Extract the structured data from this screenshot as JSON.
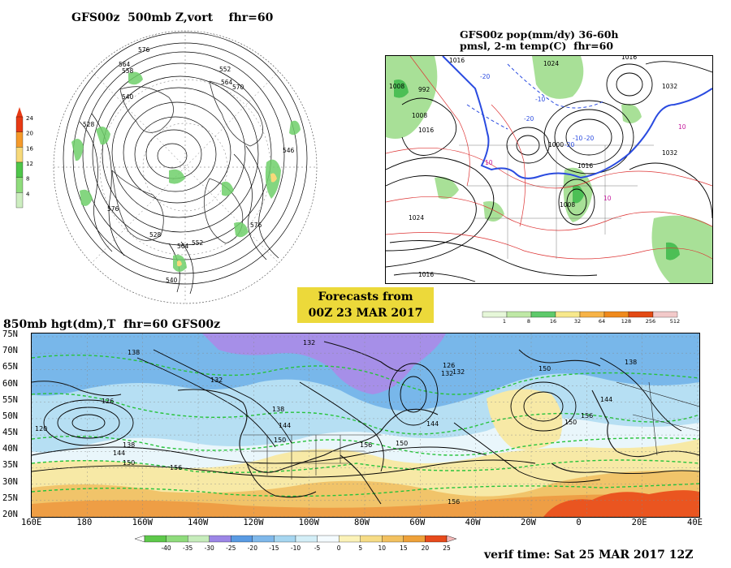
{
  "panel_500mb": {
    "title": "GFS00z  500mb Z,vort    fhr=60",
    "legend_ticks": [
      "24",
      "20",
      "16",
      "12",
      "8",
      "4"
    ],
    "legend_colors": [
      "#e83a14",
      "#f59a2a",
      "#f7d97a",
      "#4fc64a",
      "#8fdc7c",
      "#cdeec0"
    ],
    "height_labels": [
      "576",
      "564",
      "558",
      "540",
      "528",
      "552",
      "564",
      "570",
      "576",
      "546",
      "564",
      "552",
      "528",
      "540",
      "576"
    ]
  },
  "panel_pop": {
    "title_line1": "GFS00z pop(mm/dy) 36-60h",
    "title_line2": "pmsl, 2-m temp(C)  fhr=60",
    "pressure_labels": [
      "1016",
      "1008",
      "992",
      "1008",
      "1016",
      "1000",
      "1016",
      "1008",
      "1024",
      "1032",
      "1024",
      "1016",
      "1032",
      "1016"
    ],
    "temp_labels": [
      "-20",
      "-10",
      "-20",
      "10",
      "-10",
      "-20",
      "10",
      "10",
      "-20"
    ],
    "scale_values": [
      "1",
      "8",
      "16",
      "32",
      "64",
      "128",
      "256",
      "512"
    ],
    "scale_colors": [
      "#e6f7d9",
      "#bfe8a6",
      "#5ec96b",
      "#f7e88c",
      "#f7b347",
      "#ef8a1c",
      "#e34a14",
      "#f2c9c9"
    ]
  },
  "forecast_box": {
    "line1": "Forecasts from",
    "line2": "00Z 23 MAR 2017"
  },
  "panel_850mb": {
    "title": "850mb hgt(dm),T  fhr=60 GFS00z",
    "lat_labels": [
      "75N",
      "70N",
      "65N",
      "60N",
      "55N",
      "50N",
      "45N",
      "40N",
      "35N",
      "30N",
      "25N",
      "20N"
    ],
    "lon_labels": [
      "160E",
      "180",
      "160W",
      "140W",
      "120W",
      "100W",
      "80W",
      "60W",
      "40W",
      "20W",
      "0",
      "20E",
      "40E"
    ],
    "height_labels": [
      "138",
      "132",
      "126",
      "120",
      "138",
      "144",
      "150",
      "156",
      "132",
      "138",
      "144",
      "150",
      "156",
      "150",
      "132",
      "126",
      "132",
      "144",
      "150",
      "156",
      "156",
      "150",
      "144",
      "138"
    ],
    "temp_scale_values": [
      "-40",
      "-35",
      "-30",
      "-25",
      "-20",
      "-15",
      "-10",
      "-5",
      "0",
      "5",
      "10",
      "15",
      "20",
      "25"
    ],
    "temp_scale_colors": [
      "#5ec94b",
      "#8fdc7c",
      "#c6ecbb",
      "#9c86e6",
      "#5a9be3",
      "#7fb8ea",
      "#a6d6f0",
      "#d3eef7",
      "#f4fbff",
      "#fbf2b8",
      "#f6dc86",
      "#f2c160",
      "#eea13a",
      "#e74b1c"
    ]
  },
  "verif_time": "verif time: Sat 25 MAR 2017 12Z",
  "map_colors": {
    "polar": "#a68fe8",
    "cold": "#78b7ea",
    "cool": "#b6dff3",
    "mild": "#e9f6fb",
    "warm": "#f7e9a6",
    "hot": "#f1c46a",
    "tropic": "#ee9e45",
    "desert": "#ea5520"
  }
}
